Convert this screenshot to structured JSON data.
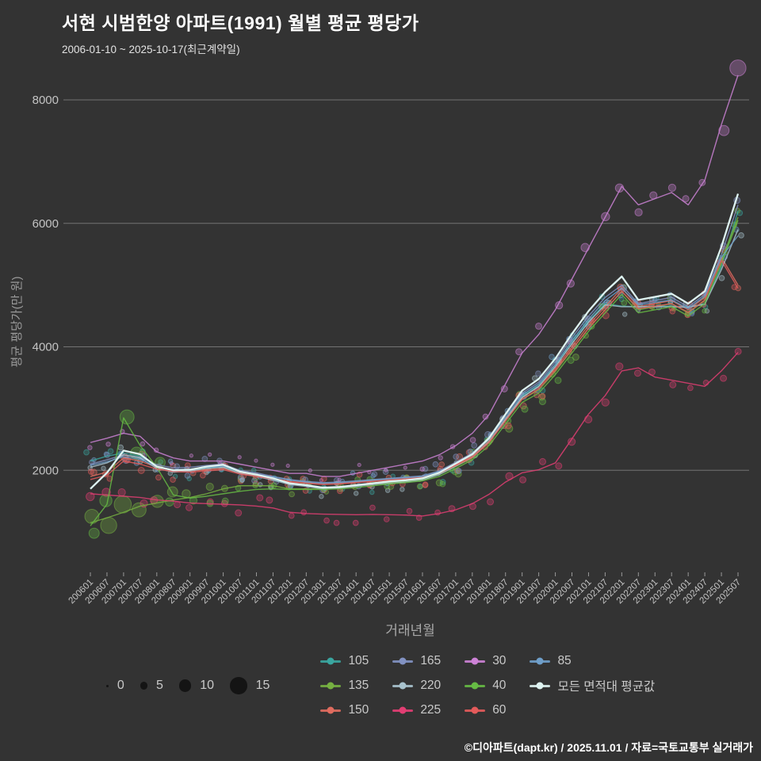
{
  "header": {
    "title": "서현 시범한양 아파트(1991) 월별 평균 평당가",
    "subtitle": "2006-01-10 ~ 2025-10-17(최근계약일)"
  },
  "footer": {
    "credit": "©디아파트(dapt.kr) / 2025.11.01 / 자료=국토교통부 실거래가"
  },
  "colors": {
    "background": "#333333",
    "grid": "#a8a8a8",
    "tick_text": "#c4c4c4",
    "axis_title": "#9b9b9b",
    "legend_text": "#c9c9c9"
  },
  "chart_data": {
    "type": "bubble-line",
    "title": "서현 시범한양 아파트(1991) 월별 평균 평당가",
    "subtitle": "2006-01-10 ~ 2025-10-17(최근계약일)",
    "xlabel": "거래년월",
    "ylabel": "평균 평당가(만 원)",
    "legend_position": "bottom",
    "grid": true,
    "y_ticks": [
      2000,
      4000,
      6000,
      8000
    ],
    "ylim": [
      360,
      8450
    ],
    "size_legend": [
      0,
      5,
      10,
      15
    ],
    "x_labels": [
      "200601",
      "200607",
      "200701",
      "200707",
      "200801",
      "200807",
      "200901",
      "200907",
      "201001",
      "201007",
      "201101",
      "201107",
      "201201",
      "201207",
      "201301",
      "201307",
      "201401",
      "201407",
      "201501",
      "201507",
      "201601",
      "201607",
      "201701",
      "201707",
      "201801",
      "201807",
      "201901",
      "201907",
      "202001",
      "202007",
      "202101",
      "202107",
      "202201",
      "202207",
      "202301",
      "202307",
      "202401",
      "202407",
      "202501",
      "202507"
    ],
    "series": [
      {
        "name": "105",
        "color": "#3aa6a0",
        "values": [
          2150,
          2230,
          2280,
          2230,
          2060,
          1990,
          2000,
          2040,
          2060,
          1960,
          1910,
          1850,
          1780,
          1750,
          1710,
          1720,
          1750,
          1780,
          1800,
          1820,
          1850,
          1940,
          2080,
          2220,
          2470,
          2840,
          3200,
          3380,
          3700,
          4080,
          4420,
          4700,
          4660,
          4650,
          4660,
          4660,
          4650,
          4700,
          5300,
          6200
        ],
        "counts": [
          3,
          3,
          3,
          3,
          2,
          2,
          2,
          2,
          2,
          2,
          2,
          2,
          2,
          2,
          2,
          2,
          2,
          2,
          2,
          2,
          2,
          3,
          3,
          3,
          3,
          3,
          3,
          3,
          3,
          3,
          3,
          3,
          2,
          2,
          2,
          2,
          2,
          2,
          3,
          3
        ]
      },
      {
        "name": "135",
        "color": "#76b041",
        "values": [
          1150,
          1230,
          1320,
          1420,
          1470,
          1520,
          1560,
          1620,
          1700,
          1750,
          1750,
          1750,
          1700,
          1700,
          1700,
          1720,
          1750,
          1780,
          1800,
          1820,
          1850,
          1930,
          2060,
          2200,
          2450,
          2800,
          3150,
          3300,
          3600,
          3950,
          4300,
          4600,
          4900,
          4600,
          4650,
          4700,
          4550,
          4750,
          5400,
          6100
        ],
        "counts": [
          12,
          14,
          15,
          12,
          10,
          8,
          6,
          5,
          4,
          4,
          3,
          3,
          3,
          3,
          2,
          3,
          3,
          3,
          3,
          3,
          3,
          4,
          4,
          4,
          5,
          5,
          4,
          4,
          4,
          4,
          3,
          3,
          3,
          2,
          2,
          2,
          2,
          2,
          3,
          3
        ]
      },
      {
        "name": "150",
        "color": "#e06c5f",
        "values": [
          1900,
          1970,
          2200,
          2150,
          2050,
          2000,
          1990,
          2010,
          2030,
          1960,
          1920,
          1870,
          1820,
          1800,
          1780,
          1790,
          1810,
          1830,
          1850,
          1870,
          1890,
          1960,
          2090,
          2230,
          2470,
          2830,
          3180,
          3350,
          3650,
          4000,
          4350,
          4650,
          4950,
          4650,
          4700,
          4750,
          4600,
          4800,
          5450,
          5000
        ],
        "counts": [
          4,
          4,
          5,
          4,
          4,
          3,
          3,
          3,
          3,
          3,
          3,
          3,
          3,
          3,
          3,
          3,
          3,
          3,
          3,
          3,
          3,
          3,
          4,
          4,
          4,
          4,
          4,
          3,
          3,
          4,
          4,
          4,
          4,
          3,
          3,
          3,
          3,
          3,
          4,
          3
        ]
      },
      {
        "name": "165",
        "color": "#8292c2",
        "values": [
          2100,
          2170,
          2250,
          2210,
          2090,
          2040,
          2050,
          2080,
          2100,
          2000,
          1960,
          1900,
          1850,
          1820,
          1800,
          1810,
          1830,
          1850,
          1870,
          1890,
          1910,
          1990,
          2130,
          2280,
          2530,
          2900,
          3250,
          3430,
          3760,
          4150,
          4500,
          4800,
          5000,
          4700,
          4750,
          4800,
          4650,
          4850,
          5500,
          6300
        ],
        "counts": [
          3,
          3,
          4,
          4,
          3,
          3,
          3,
          3,
          3,
          3,
          3,
          3,
          3,
          3,
          3,
          3,
          3,
          3,
          3,
          3,
          3,
          3,
          3,
          3,
          4,
          4,
          4,
          3,
          3,
          4,
          4,
          4,
          4,
          3,
          3,
          3,
          3,
          3,
          4,
          4
        ]
      },
      {
        "name": "220",
        "color": "#a9c3ce",
        "values": [
          2050,
          2120,
          2250,
          2200,
          2030,
          1970,
          1990,
          2030,
          2050,
          1950,
          1900,
          1840,
          1770,
          1740,
          1700,
          1710,
          1740,
          1770,
          1790,
          1810,
          1840,
          1930,
          2070,
          2210,
          2460,
          2820,
          3180,
          3360,
          3680,
          4050,
          4400,
          4680,
          4650,
          4650,
          4650,
          4650,
          4640,
          4690,
          5250,
          5900
        ],
        "counts": [
          2,
          2,
          3,
          3,
          2,
          2,
          2,
          2,
          2,
          2,
          2,
          2,
          2,
          2,
          2,
          2,
          2,
          2,
          2,
          2,
          2,
          2,
          2,
          3,
          3,
          3,
          3,
          3,
          3,
          3,
          3,
          3,
          2,
          2,
          2,
          2,
          2,
          2,
          3,
          3
        ]
      },
      {
        "name": "225",
        "color": "#e23e73",
        "values": [
          1620,
          1600,
          1580,
          1560,
          1520,
          1500,
          1470,
          1460,
          1450,
          1440,
          1420,
          1390,
          1320,
          1300,
          1290,
          1285,
          1280,
          1285,
          1280,
          1275,
          1260,
          1300,
          1360,
          1460,
          1610,
          1810,
          1960,
          2010,
          2120,
          2510,
          2910,
          3210,
          3610,
          3660,
          3510,
          3460,
          3410,
          3360,
          3610,
          3910
        ],
        "counts": [
          6,
          6,
          5,
          5,
          5,
          4,
          4,
          4,
          4,
          4,
          4,
          4,
          3,
          3,
          3,
          3,
          3,
          3,
          3,
          3,
          3,
          3,
          4,
          4,
          4,
          5,
          4,
          4,
          4,
          5,
          5,
          5,
          5,
          4,
          4,
          4,
          3,
          3,
          4,
          4
        ]
      },
      {
        "name": "30",
        "color": "#cd82d6",
        "values": [
          2450,
          2520,
          2600,
          2550,
          2300,
          2200,
          2150,
          2150,
          2150,
          2100,
          2050,
          2000,
          1950,
          1950,
          1900,
          1900,
          1950,
          2000,
          2050,
          2100,
          2150,
          2250,
          2400,
          2600,
          2900,
          3400,
          3900,
          4200,
          4600,
          5100,
          5600,
          6100,
          6600,
          6300,
          6400,
          6500,
          6300,
          6700,
          7600,
          8400
        ],
        "counts": [
          2,
          2,
          2,
          2,
          2,
          1,
          1,
          1,
          1,
          1,
          1,
          1,
          1,
          1,
          1,
          1,
          1,
          1,
          1,
          1,
          2,
          2,
          2,
          3,
          3,
          4,
          4,
          4,
          5,
          5,
          6,
          6,
          6,
          5,
          5,
          5,
          4,
          4,
          8,
          14
        ]
      },
      {
        "name": "40",
        "color": "#66bb44",
        "values": [
          1100,
          1450,
          2850,
          2400,
          2050,
          1600,
          1550,
          1580,
          1620,
          1660,
          1690,
          1700,
          1690,
          1690,
          1690,
          1700,
          1720,
          1750,
          1780,
          1800,
          1830,
          1900,
          2030,
          2170,
          2400,
          2750,
          3100,
          3250,
          3550,
          3900,
          4250,
          4550,
          4850,
          4550,
          4600,
          4650,
          4500,
          4700,
          5350,
          6050
        ],
        "counts": [
          8,
          10,
          12,
          10,
          8,
          6,
          5,
          4,
          4,
          3,
          3,
          3,
          3,
          3,
          3,
          3,
          3,
          3,
          3,
          3,
          3,
          3,
          4,
          4,
          4,
          4,
          4,
          4,
          4,
          4,
          3,
          3,
          3,
          2,
          2,
          2,
          2,
          2,
          3,
          3
        ]
      },
      {
        "name": "60",
        "color": "#e45b5b",
        "values": [
          1850,
          1920,
          2150,
          2100,
          2020,
          1980,
          1970,
          1990,
          2010,
          1940,
          1900,
          1860,
          1810,
          1790,
          1770,
          1780,
          1800,
          1820,
          1840,
          1860,
          1880,
          1950,
          2080,
          2210,
          2450,
          2800,
          3150,
          3320,
          3620,
          3960,
          4300,
          4600,
          4900,
          4620,
          4660,
          4700,
          4560,
          4760,
          5400,
          4950
        ],
        "counts": [
          3,
          3,
          4,
          4,
          3,
          3,
          3,
          3,
          3,
          3,
          3,
          3,
          3,
          3,
          3,
          3,
          3,
          3,
          3,
          3,
          3,
          3,
          3,
          3,
          3,
          4,
          4,
          3,
          3,
          4,
          4,
          4,
          4,
          3,
          3,
          3,
          3,
          3,
          4,
          3
        ]
      },
      {
        "name": "85",
        "color": "#6f9fca",
        "values": [
          2080,
          2140,
          2220,
          2180,
          2060,
          2010,
          2020,
          2050,
          2070,
          1980,
          1940,
          1890,
          1840,
          1810,
          1790,
          1800,
          1820,
          1840,
          1860,
          1880,
          1900,
          1980,
          2110,
          2250,
          2500,
          2860,
          3220,
          3400,
          3720,
          4100,
          4450,
          4750,
          4950,
          4680,
          4720,
          4760,
          4620,
          4820,
          5450,
          5800
        ],
        "counts": [
          2,
          2,
          3,
          3,
          2,
          2,
          2,
          2,
          2,
          2,
          2,
          2,
          2,
          2,
          2,
          2,
          2,
          2,
          2,
          2,
          2,
          2,
          3,
          3,
          3,
          3,
          3,
          3,
          3,
          3,
          3,
          3,
          3,
          2,
          2,
          2,
          2,
          2,
          3,
          3
        ]
      },
      {
        "name": "모든 면적대 평균값",
        "color": "#def3f1",
        "average": true,
        "values": [
          1700,
          1960,
          2320,
          2260,
          2060,
          2000,
          2010,
          2060,
          2090,
          1980,
          1930,
          1870,
          1790,
          1760,
          1720,
          1730,
          1760,
          1790,
          1820,
          1840,
          1870,
          1960,
          2110,
          2260,
          2520,
          2910,
          3290,
          3480,
          3810,
          4210,
          4580,
          4890,
          5140,
          4760,
          4810,
          4860,
          4700,
          4900,
          5620,
          6480
        ]
      }
    ]
  }
}
